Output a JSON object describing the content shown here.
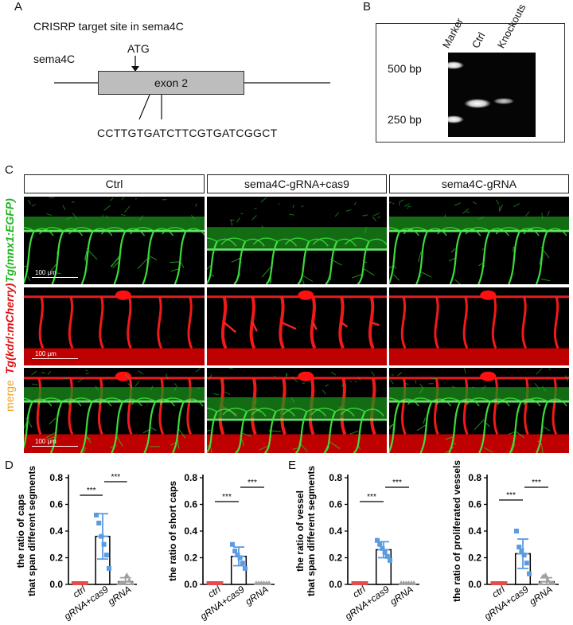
{
  "panels": {
    "a": {
      "letter": "A",
      "title": "CRISRP target site in sema4C",
      "gene": "sema4C",
      "atg": "ATG",
      "exon": "exon 2",
      "sequence": "CCTTGTGATCTTCGTGATCGGCT"
    },
    "b": {
      "letter": "B",
      "lanes": [
        "Marker",
        "Ctrl",
        "Knockouts"
      ],
      "size_500": "500 bp",
      "size_250": "250 bp"
    },
    "c": {
      "letter": "C",
      "columns": [
        "Ctrl",
        "sema4C-gRNA+cas9",
        "sema4C-gRNA"
      ],
      "rows": [
        "Tg(mnx1:EGFP)",
        "Tg(kdrl:mCherry)",
        "merge"
      ],
      "row_colors": [
        "#1fb51f",
        "#e01010",
        "#f0a020"
      ],
      "scale": "100 μm"
    },
    "d": {
      "letter": "D"
    },
    "e": {
      "letter": "E"
    }
  },
  "chart_data": [
    {
      "type": "bar",
      "panel": "D",
      "categories": [
        "ctrl",
        "gRNA+cas9",
        "gRNA"
      ],
      "values": [
        0.0,
        0.36,
        0.02
      ],
      "errors": [
        0.0,
        0.17,
        0.03
      ],
      "points": [
        [
          0,
          0,
          0,
          0,
          0,
          0
        ],
        [
          0.52,
          0.46,
          0.36,
          0.3,
          0.22,
          0.12
        ],
        [
          0,
          0,
          0,
          0.06,
          0.02,
          0
        ]
      ],
      "ylabel": [
        "the ratio of caps",
        "that span different segments"
      ],
      "ylim": [
        0,
        0.8
      ],
      "yticks": [
        0.0,
        0.2,
        0.4,
        0.6,
        0.8
      ],
      "yticklabels": [
        "0.0",
        "0.2",
        "0.4",
        "0.6",
        "0.8"
      ],
      "colors": [
        "#e84b4b",
        "#5b9be0",
        "#a0a0a0"
      ],
      "sig": [
        "***",
        "***"
      ]
    },
    {
      "type": "bar",
      "panel": "D",
      "categories": [
        "ctrl",
        "gRNA+cas9",
        "gRNA"
      ],
      "values": [
        0.0,
        0.21,
        0.0
      ],
      "errors": [
        0.0,
        0.07,
        0.0
      ],
      "points": [
        [
          0,
          0,
          0,
          0,
          0,
          0
        ],
        [
          0.3,
          0.25,
          0.22,
          0.2,
          0.16,
          0.12
        ],
        [
          0,
          0,
          0,
          0,
          0,
          0
        ]
      ],
      "ylabel": [
        "the ratio of short caps"
      ],
      "ylim": [
        0,
        0.8
      ],
      "yticks": [
        0.0,
        0.2,
        0.4,
        0.6,
        0.8
      ],
      "yticklabels": [
        "0.0",
        "0.2",
        "0.4",
        "0.6",
        "0.8"
      ],
      "colors": [
        "#e84b4b",
        "#5b9be0",
        "#a0a0a0"
      ],
      "sig": [
        "***",
        "***"
      ]
    },
    {
      "type": "bar",
      "panel": "E",
      "categories": [
        "ctrl",
        "gRNA+cas9",
        "gRNA"
      ],
      "values": [
        0.0,
        0.26,
        0.0
      ],
      "errors": [
        0.0,
        0.06,
        0.0
      ],
      "points": [
        [
          0,
          0,
          0,
          0,
          0,
          0
        ],
        [
          0.33,
          0.3,
          0.27,
          0.24,
          0.21,
          0.18
        ],
        [
          0,
          0,
          0,
          0,
          0,
          0
        ]
      ],
      "ylabel": [
        "the ratio of vessel",
        "that span different segments"
      ],
      "ylim": [
        0,
        0.8
      ],
      "yticks": [
        0.0,
        0.2,
        0.4,
        0.6,
        0.8
      ],
      "yticklabels": [
        "0.0",
        "0.2",
        "0.4",
        "0.6",
        "0.8"
      ],
      "colors": [
        "#e84b4b",
        "#5b9be0",
        "#a0a0a0"
      ],
      "sig": [
        "***",
        "***"
      ]
    },
    {
      "type": "bar",
      "panel": "E",
      "categories": [
        "ctrl",
        "gRNA+cas9",
        "gRNA"
      ],
      "values": [
        0.0,
        0.23,
        0.02
      ],
      "errors": [
        0.0,
        0.11,
        0.03
      ],
      "points": [
        [
          0,
          0,
          0,
          0,
          0,
          0
        ],
        [
          0.4,
          0.28,
          0.25,
          0.22,
          0.16,
          0.08
        ],
        [
          0,
          0.05,
          0.06,
          0.02,
          0,
          0
        ]
      ],
      "ylabel": [
        "the ratio of proliferated vessels"
      ],
      "ylim": [
        0,
        0.8
      ],
      "yticks": [
        0.0,
        0.2,
        0.4,
        0.6,
        0.8
      ],
      "yticklabels": [
        "0.0",
        "0.2",
        "0.4",
        "0.6",
        "0.8"
      ],
      "colors": [
        "#e84b4b",
        "#5b9be0",
        "#a0a0a0"
      ],
      "sig": [
        "***",
        "***"
      ]
    }
  ]
}
